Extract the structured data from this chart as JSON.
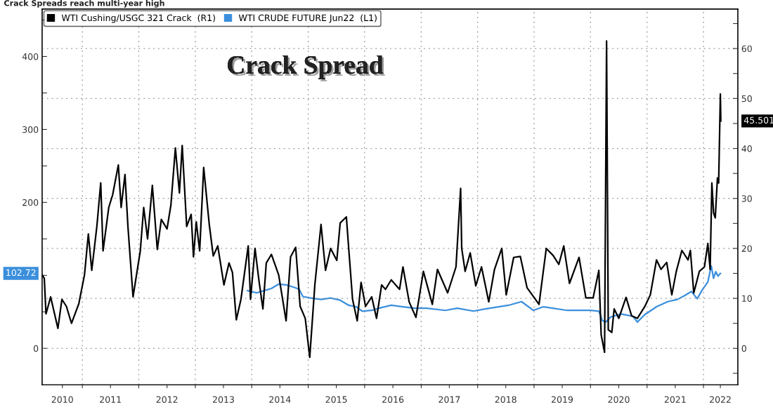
{
  "chart_data": {
    "type": "line",
    "title": "Crack Spreads reach multi-year high",
    "annotations": [
      "Crack Spread",
      "45.501",
      "102.72"
    ],
    "xlim": [
      "2010-04-16",
      "2022-08-11"
    ],
    "xticks": [
      {
        "value": "2010-08-25",
        "label": "2010"
      },
      {
        "value": "2011-01-01",
        "label": null
      },
      {
        "value": "2011-07-02",
        "label": "2011"
      },
      {
        "value": "2012-01-01",
        "label": null
      },
      {
        "value": "2012-07-02",
        "label": "2012"
      },
      {
        "value": "2013-01-01",
        "label": null
      },
      {
        "value": "2013-07-02",
        "label": "2013"
      },
      {
        "value": "2014-01-01",
        "label": null
      },
      {
        "value": "2014-07-02",
        "label": "2014"
      },
      {
        "value": "2015-01-01",
        "label": null
      },
      {
        "value": "2015-07-02",
        "label": "2015"
      },
      {
        "value": "2016-01-01",
        "label": null
      },
      {
        "value": "2016-07-02",
        "label": "2016"
      },
      {
        "value": "2017-01-01",
        "label": null
      },
      {
        "value": "2017-07-02",
        "label": "2017"
      },
      {
        "value": "2018-01-01",
        "label": null
      },
      {
        "value": "2018-07-02",
        "label": "2018"
      },
      {
        "value": "2019-01-01",
        "label": null
      },
      {
        "value": "2019-07-02",
        "label": "2019"
      },
      {
        "value": "2020-01-01",
        "label": null
      },
      {
        "value": "2020-07-02",
        "label": "2020"
      },
      {
        "value": "2021-01-01",
        "label": null
      },
      {
        "value": "2021-07-02",
        "label": "2021"
      },
      {
        "value": "2022-01-01",
        "label": null
      },
      {
        "value": "2022-04-20",
        "label": "2022"
      }
    ],
    "ylim": [
      -50,
      465
    ],
    "yticks": [
      0,
      {
        "value": 50,
        "label": null
      },
      100,
      {
        "value": 150,
        "label": null
      },
      200,
      {
        "value": 250,
        "label": null
      },
      300,
      {
        "value": 350,
        "label": null
      },
      400,
      {
        "value": 450,
        "label": null
      }
    ],
    "y2lim": [
      -7.3,
      67.9
    ],
    "y2ticks": [
      {
        "value": -5,
        "label": null
      },
      0,
      {
        "value": 5,
        "label": null
      },
      10,
      {
        "value": 15,
        "label": null
      },
      20,
      {
        "value": 25,
        "label": null
      },
      30,
      {
        "value": 35,
        "label": null
      },
      40,
      {
        "value": 45,
        "label": null
      },
      50,
      {
        "value": 55,
        "label": null
      },
      60,
      {
        "value": 65,
        "label": null
      }
    ],
    "grid": true,
    "legend": "top left",
    "marker": "none",
    "line_style": "solid",
    "series": [
      {
        "name": "WTI Cushing/USGC 321 Crack  (R1)",
        "color": "#000000",
        "axis": "y2",
        "x": [
          "2010-04-16",
          "2010-04-30",
          "2010-05-11",
          "2010-06-10",
          "2010-07-27",
          "2010-08-22",
          "2010-09-20",
          "2010-10-23",
          "2010-12-09",
          "2011-01-15",
          "2011-02-09",
          "2011-03-03",
          "2011-04-05",
          "2011-04-30",
          "2011-05-15",
          "2011-06-21",
          "2011-07-16",
          "2011-08-22",
          "2011-09-09",
          "2011-10-04",
          "2011-10-23",
          "2011-11-25",
          "2012-01-11",
          "2012-02-02",
          "2012-02-27",
          "2012-03-29",
          "2012-04-30",
          "2012-05-26",
          "2012-07-02",
          "2012-07-27",
          "2012-08-25",
          "2012-09-20",
          "2012-10-08",
          "2012-11-06",
          "2012-12-05",
          "2012-12-20",
          "2013-01-07",
          "2013-01-29",
          "2013-02-24",
          "2013-04-01",
          "2013-04-27",
          "2013-05-26",
          "2013-07-05",
          "2013-08-07",
          "2013-08-29",
          "2013-09-23",
          "2013-10-23",
          "2013-12-09",
          "2013-12-24",
          "2014-01-22",
          "2014-02-16",
          "2014-03-14",
          "2014-04-05",
          "2014-05-08",
          "2014-06-24",
          "2014-08-11",
          "2014-09-09",
          "2014-10-12",
          "2014-11-10",
          "2014-12-13",
          "2015-01-11",
          "2015-02-13",
          "2015-03-25",
          "2015-04-23",
          "2015-05-26",
          "2015-07-05",
          "2015-07-27",
          "2015-09-05",
          "2015-09-20",
          "2015-10-15",
          "2015-11-14",
          "2015-12-09",
          "2016-01-07",
          "2016-02-16",
          "2016-03-18",
          "2016-04-20",
          "2016-05-15",
          "2016-06-21",
          "2016-08-14",
          "2016-09-05",
          "2016-10-15",
          "2016-11-28",
          "2017-01-15",
          "2017-03-14",
          "2017-04-16",
          "2017-06-21",
          "2017-08-14",
          "2017-09-13",
          "2017-09-20",
          "2017-10-12",
          "2017-11-14",
          "2017-12-20",
          "2018-01-26",
          "2018-03-14",
          "2018-04-20",
          "2018-06-06",
          "2018-07-05",
          "2018-08-22",
          "2018-10-04",
          "2018-11-17",
          "2019-02-02",
          "2019-03-21",
          "2019-05-04",
          "2019-06-10",
          "2019-07-12",
          "2019-08-18",
          "2019-10-19",
          "2019-12-02",
          "2020-01-18",
          "2020-02-24",
          "2020-03-10",
          "2020-04-01",
          "2020-04-14",
          "2020-04-25",
          "2020-05-18",
          "2020-06-02",
          "2020-07-02",
          "2020-08-18",
          "2020-09-23",
          "2020-10-30",
          "2020-12-16",
          "2021-01-22",
          "2021-03-03",
          "2021-04-01",
          "2021-05-08",
          "2021-06-10",
          "2021-07-09",
          "2021-08-14",
          "2021-09-23",
          "2021-10-08",
          "2021-10-30",
          "2021-12-05",
          "2022-01-07",
          "2022-01-29",
          "2022-02-13",
          "2022-02-24",
          "2022-03-07",
          "2022-03-18",
          "2022-04-01",
          "2022-04-09",
          "2022-04-20",
          "2022-04-23"
        ],
        "values": [
          14.7,
          14.0,
          6.9,
          10.3,
          4.0,
          9.8,
          8.4,
          5.0,
          8.9,
          14.7,
          22.9,
          15.6,
          24.4,
          33.1,
          19.5,
          28.2,
          30.7,
          36.7,
          28.2,
          34.8,
          24.4,
          10.3,
          19.5,
          28.2,
          21.9,
          32.6,
          19.8,
          25.8,
          23.9,
          28.7,
          40.1,
          31.1,
          40.6,
          24.4,
          26.8,
          18.3,
          25.3,
          19.5,
          36.2,
          24.8,
          18.5,
          20.5,
          12.7,
          17.1,
          15.2,
          5.7,
          9.8,
          20.5,
          9.8,
          20.0,
          13.7,
          7.9,
          17.1,
          18.8,
          14.7,
          5.5,
          18.3,
          20.2,
          8.4,
          6.0,
          -1.8,
          12.7,
          24.8,
          15.6,
          20.0,
          17.6,
          25.1,
          26.3,
          20.0,
          9.8,
          5.5,
          13.2,
          8.4,
          10.3,
          6.0,
          12.7,
          11.8,
          13.7,
          11.8,
          16.3,
          9.3,
          6.2,
          15.4,
          8.8,
          15.8,
          11.1,
          16.3,
          32.0,
          20.0,
          15.4,
          19.1,
          12.5,
          16.3,
          9.3,
          15.8,
          20.0,
          10.7,
          18.2,
          18.4,
          12.1,
          8.8,
          20.0,
          18.6,
          16.8,
          20.5,
          13.0,
          18.2,
          10.1,
          10.1,
          15.6,
          2.7,
          -0.8,
          61.5,
          3.7,
          3.2,
          7.9,
          6.0,
          10.2,
          6.5,
          6.0,
          8.3,
          10.7,
          17.7,
          15.8,
          17.2,
          10.7,
          15.4,
          19.6,
          17.7,
          19.6,
          11.1,
          15.4,
          16.3,
          21.0,
          15.8,
          33.1,
          27.1,
          26.1,
          34.1,
          33.1,
          50.9,
          45.501
        ],
        "value_labels": [
          null,
          null,
          null,
          null,
          null,
          null,
          null,
          null,
          null,
          null,
          null,
          null,
          null,
          null,
          null,
          null,
          null,
          null,
          null,
          null,
          null,
          null,
          null,
          null,
          null,
          null,
          null,
          null,
          null,
          null,
          null,
          null,
          null,
          null,
          null,
          null,
          null,
          null,
          null,
          null,
          null,
          null,
          null,
          null,
          null,
          null,
          null,
          null,
          null,
          null,
          null,
          null,
          null,
          null,
          null,
          null,
          null,
          null,
          null,
          null,
          null,
          null,
          null,
          null,
          null,
          null,
          null,
          null,
          null,
          null,
          null,
          null,
          null,
          null,
          null,
          null,
          null,
          null,
          null,
          null,
          null,
          null,
          null,
          null,
          null,
          null,
          null,
          null,
          null,
          null,
          null,
          null,
          null,
          null,
          null,
          null,
          null,
          null,
          null,
          null,
          null,
          null,
          null,
          null,
          null,
          null,
          null,
          null,
          null,
          null,
          null,
          null,
          null,
          null,
          null,
          null,
          null,
          null,
          null,
          null,
          null,
          null,
          null,
          null,
          null,
          null,
          null,
          null,
          null,
          null,
          null,
          null,
          null,
          null,
          null,
          null,
          null,
          null,
          null,
          null,
          null,
          null
        ]
      },
      {
        "name": "WTI CRUDE FUTURE Jun22  (L1)",
        "color": "#3b8fdc",
        "axis": "y",
        "x": [
          "2013-12-05",
          "2014-02-02",
          "2014-03-21",
          "2014-05-08",
          "2014-06-24",
          "2014-08-11",
          "2014-09-27",
          "2014-11-03",
          "2014-11-28",
          "2015-01-18",
          "2015-03-25",
          "2015-05-26",
          "2015-07-27",
          "2015-09-20",
          "2015-11-06",
          "2015-12-16",
          "2016-02-16",
          "2016-04-20",
          "2016-06-21",
          "2016-09-05",
          "2016-11-21",
          "2017-02-06",
          "2017-06-06",
          "2017-08-22",
          "2017-12-05",
          "2018-02-20",
          "2018-07-20",
          "2018-10-12",
          "2018-12-27",
          "2019-03-03",
          "2019-08-03",
          "2020-01-01",
          "2020-02-24",
          "2020-03-18",
          "2020-04-09",
          "2020-05-11",
          "2020-07-16",
          "2020-10-01",
          "2020-10-30",
          "2020-12-16",
          "2021-03-03",
          "2021-05-15",
          "2021-07-16",
          "2021-08-29",
          "2021-10-15",
          "2021-11-21",
          "2021-12-24",
          "2022-01-29",
          "2022-02-20",
          "2022-03-07",
          "2022-03-21",
          "2022-04-05",
          "2022-04-20"
        ],
        "values": [
          79,
          76,
          79,
          82,
          88,
          87,
          84,
          81,
          71,
          69,
          67,
          69,
          66,
          59,
          57,
          51,
          52,
          56,
          59,
          57,
          55,
          55,
          52,
          55,
          51,
          54,
          59,
          64,
          52,
          57,
          52,
          52,
          51,
          38,
          36,
          43,
          47,
          44,
          36,
          46,
          57,
          64,
          67,
          72,
          78,
          68,
          80,
          91,
          113,
          96,
          105,
          99,
          102.72
        ],
        "value_labels": [
          null,
          null,
          null,
          null,
          null,
          null,
          null,
          null,
          null,
          null,
          null,
          null,
          null,
          null,
          null,
          null,
          null,
          null,
          null,
          null,
          null,
          null,
          null,
          null,
          null,
          null,
          null,
          null,
          null,
          null,
          null,
          null,
          null,
          null,
          null,
          null,
          null,
          null,
          null,
          null,
          null,
          null,
          null,
          null,
          null,
          null,
          null,
          null,
          null,
          null,
          null,
          null,
          null
        ]
      }
    ]
  }
}
